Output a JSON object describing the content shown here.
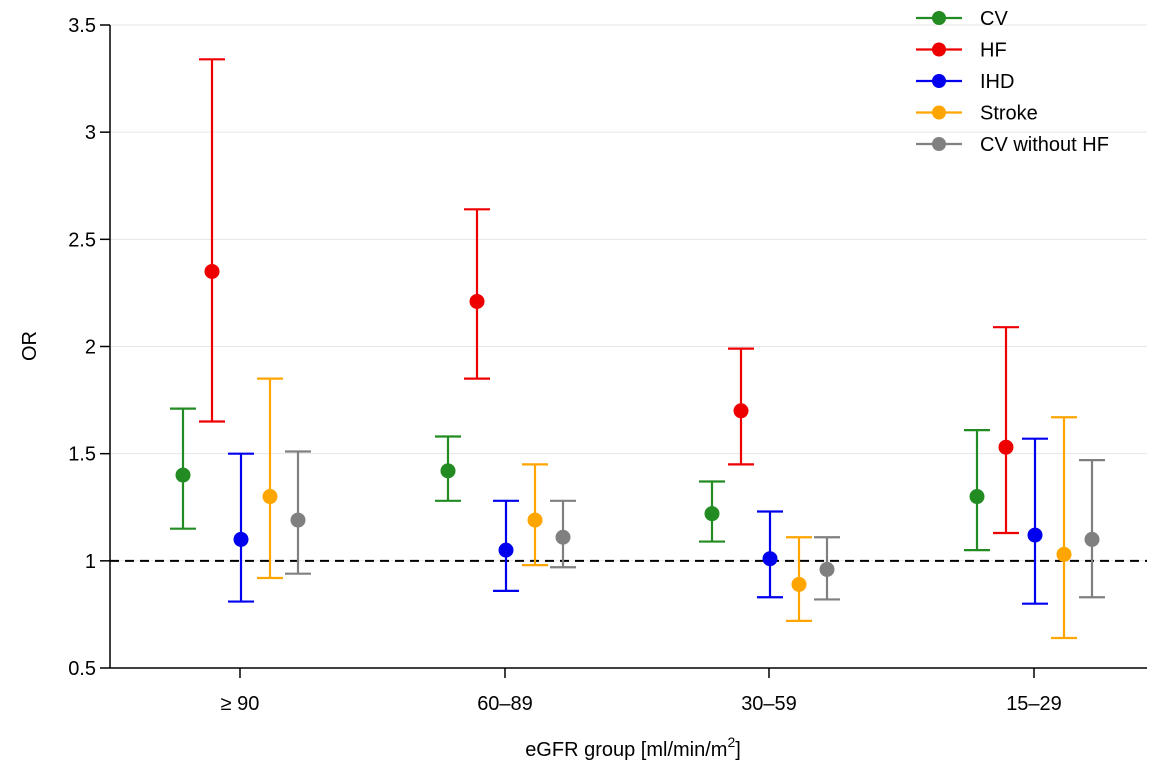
{
  "chart_data": {
    "type": "scatter",
    "subtype": "point-with-error-bars",
    "title": "",
    "xlabel": "eGFR group [ml/min/m",
    "xlabel_superscript": "2",
    "xlabel_suffix": "]",
    "ylabel": "OR",
    "categories": [
      "≥ 90",
      "60–89",
      "30–59",
      "15–29"
    ],
    "ylim": [
      0.5,
      3.5
    ],
    "yticks": [
      0.5,
      1,
      1.5,
      2,
      2.5,
      3,
      3.5
    ],
    "ytick_labels": [
      "0.5",
      "1",
      "1.5",
      "2",
      "2.5",
      "3",
      "3.5"
    ],
    "reference_line": {
      "y": 1,
      "style": "dashed"
    },
    "grid": "horizontal",
    "legend_position": "top-right",
    "series": [
      {
        "name": "CV",
        "color": "#228B22",
        "values": [
          1.4,
          1.42,
          1.22,
          1.3
        ],
        "lower": [
          1.15,
          1.28,
          1.09,
          1.05
        ],
        "upper": [
          1.71,
          1.58,
          1.37,
          1.61
        ]
      },
      {
        "name": "HF",
        "color": "#EE0000",
        "values": [
          2.35,
          2.21,
          1.7,
          1.53
        ],
        "lower": [
          1.65,
          1.85,
          1.45,
          1.13
        ],
        "upper": [
          3.34,
          2.64,
          1.99,
          2.09
        ]
      },
      {
        "name": "IHD",
        "color": "#0000EE",
        "values": [
          1.1,
          1.05,
          1.01,
          1.12
        ],
        "lower": [
          0.81,
          0.86,
          0.83,
          0.8
        ],
        "upper": [
          1.5,
          1.28,
          1.23,
          1.57
        ]
      },
      {
        "name": "Stroke",
        "color": "#FFA500",
        "values": [
          1.3,
          1.19,
          0.89,
          1.03
        ],
        "lower": [
          0.92,
          0.98,
          0.72,
          0.64
        ],
        "upper": [
          1.85,
          1.45,
          1.11,
          1.67
        ]
      },
      {
        "name": "CV without HF",
        "color": "#808080",
        "values": [
          1.19,
          1.11,
          0.96,
          1.1
        ],
        "lower": [
          0.94,
          0.97,
          0.82,
          0.83
        ],
        "upper": [
          1.51,
          1.28,
          1.11,
          1.47
        ]
      }
    ]
  }
}
